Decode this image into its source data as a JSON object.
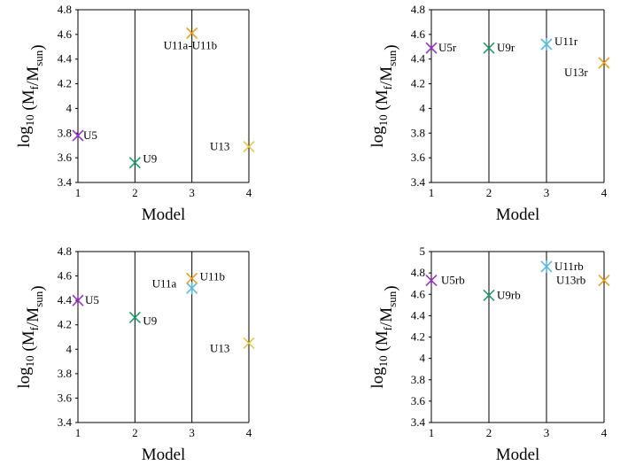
{
  "charts": [
    {
      "type": "scatter",
      "xlabel": "Model",
      "ylabel_parts": {
        "pre": "log",
        "log_sub": "10",
        "open": " (M",
        "m1_sub": "f",
        "slash": "/M",
        "m2_sub": "sun",
        "close": ")"
      },
      "xlim": [
        1,
        4
      ],
      "ylim": [
        3.4,
        4.8
      ],
      "xticks": [
        "1",
        "2",
        "3",
        "4"
      ],
      "yticks": [
        "3.4",
        "3.6",
        "3.8",
        "4",
        "4.2",
        "4.4",
        "4.6",
        "4.8"
      ],
      "points": [
        {
          "label": "U5",
          "x": 1,
          "y": 3.78,
          "color": "#9b30c8",
          "marker": "x"
        },
        {
          "label": "U9",
          "x": 2,
          "y": 3.56,
          "color": "#1f9a6a",
          "marker": "x"
        },
        {
          "label": "U11a-U11b",
          "x": 3,
          "y": 4.61,
          "color": "#e6a020",
          "marker": "x"
        },
        {
          "label": "U13",
          "x": 4,
          "y": 3.69,
          "color": "#e6c84a",
          "marker": "x"
        }
      ]
    },
    {
      "type": "scatter",
      "xlabel": "Model",
      "ylabel_parts": {
        "pre": "log",
        "log_sub": "10",
        "open": " (M",
        "m1_sub": "f",
        "slash": "/M",
        "m2_sub": "sun",
        "close": ")"
      },
      "xlim": [
        1,
        4
      ],
      "ylim": [
        3.4,
        4.8
      ],
      "xticks": [
        "1",
        "2",
        "3",
        "4"
      ],
      "yticks": [
        "3.4",
        "3.6",
        "3.8",
        "4",
        "4.2",
        "4.4",
        "4.6",
        "4.8"
      ],
      "points": [
        {
          "label": "U5r",
          "x": 1,
          "y": 4.49,
          "color": "#9b30c8",
          "marker": "x"
        },
        {
          "label": "U9r",
          "x": 2,
          "y": 4.49,
          "color": "#1f9a6a",
          "marker": "x"
        },
        {
          "label": "U11r",
          "x": 3,
          "y": 4.52,
          "color": "#5ab8e0",
          "marker": "star"
        },
        {
          "label": "U13r",
          "x": 4,
          "y": 4.37,
          "color": "#e6a020",
          "marker": "x"
        }
      ]
    },
    {
      "type": "scatter",
      "xlabel": "Model",
      "ylabel_parts": {
        "pre": "log",
        "log_sub": "10",
        "open": " (M",
        "m1_sub": "f",
        "slash": "/M",
        "m2_sub": "sun",
        "close": ")"
      },
      "xlim": [
        1,
        4
      ],
      "ylim": [
        3.4,
        4.8
      ],
      "xticks": [
        "1",
        "2",
        "3",
        "4"
      ],
      "yticks": [
        "3.4",
        "3.6",
        "3.8",
        "4",
        "4.2",
        "4.4",
        "4.6",
        "4.8"
      ],
      "points": [
        {
          "label": "U5",
          "x": 1,
          "y": 4.4,
          "color": "#9b30c8",
          "marker": "x"
        },
        {
          "label": "U9",
          "x": 2,
          "y": 4.26,
          "color": "#1f9a6a",
          "marker": "x"
        },
        {
          "label": "U11a",
          "x": 3,
          "y": 4.5,
          "color": "#5ab8e0",
          "marker": "star"
        },
        {
          "label": "U11b",
          "x": 3,
          "y": 4.58,
          "color": "#e6a020",
          "marker": "x"
        },
        {
          "label": "U13",
          "x": 4,
          "y": 4.05,
          "color": "#e6c84a",
          "marker": "x"
        }
      ]
    },
    {
      "type": "scatter",
      "xlabel": "Model",
      "ylabel_parts": {
        "pre": "log",
        "log_sub": "10",
        "open": " (M",
        "m1_sub": "f",
        "slash": "/M",
        "m2_sub": "sun",
        "close": ")"
      },
      "xlim": [
        1,
        4
      ],
      "ylim": [
        3.4,
        5.0
      ],
      "xticks": [
        "1",
        "2",
        "3",
        "4"
      ],
      "yticks": [
        "3.4",
        "3.6",
        "3.8",
        "4",
        "4.2",
        "4.4",
        "4.6",
        "4.8",
        "5"
      ],
      "points": [
        {
          "label": "U5rb",
          "x": 1,
          "y": 4.73,
          "color": "#9b30c8",
          "marker": "x"
        },
        {
          "label": "U9rb",
          "x": 2,
          "y": 4.59,
          "color": "#1f9a6a",
          "marker": "x"
        },
        {
          "label": "U11rb",
          "x": 3,
          "y": 4.86,
          "color": "#5ab8e0",
          "marker": "star"
        },
        {
          "label": "U13rb",
          "x": 4,
          "y": 4.73,
          "color": "#e6a020",
          "marker": "x"
        }
      ]
    }
  ]
}
